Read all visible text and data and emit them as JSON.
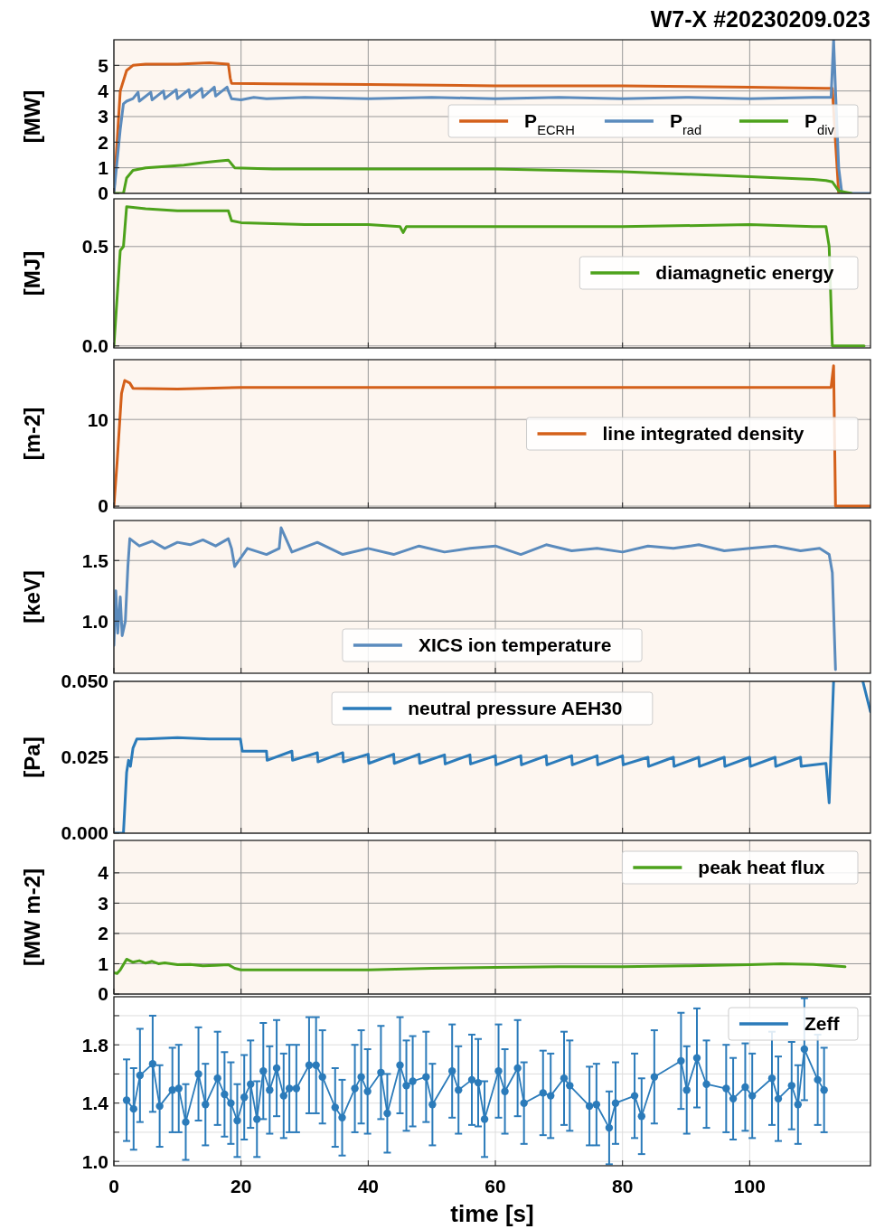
{
  "chart_data": [
    {
      "type": "line",
      "title": "W7-X #20230209.023",
      "ylabel": "[MW]",
      "xlim": [
        0,
        119
      ],
      "xticks": [
        0,
        20,
        40,
        60,
        80,
        100
      ],
      "ylim": [
        0,
        6
      ],
      "yticks": [
        0,
        1,
        2,
        3,
        4,
        5
      ],
      "grid": true,
      "legend": "right",
      "tick_labels": "y",
      "series": [
        {
          "name": "P$_{ECRH}$",
          "color": "#d4601a",
          "x": [
            0,
            0.5,
            1,
            2,
            3,
            5,
            10,
            15,
            18,
            18.3,
            18.5,
            25,
            40,
            60,
            80,
            100,
            112,
            113,
            113.5,
            114
          ],
          "values": [
            0,
            2,
            4,
            4.8,
            5.0,
            5.05,
            5.05,
            5.1,
            5.05,
            4.5,
            4.3,
            4.28,
            4.25,
            4.2,
            4.2,
            4.15,
            4.1,
            4.1,
            2,
            0
          ]
        },
        {
          "name": "P$_{rad}$",
          "color": "#5b8bbd",
          "x": [
            0,
            1,
            1.5,
            2,
            3,
            3.8,
            4,
            5.8,
            6,
            7.8,
            8,
            9.8,
            10,
            11.8,
            12,
            13.8,
            14,
            15.8,
            16,
            17.8,
            18,
            18.5,
            20,
            22,
            24,
            30,
            40,
            50,
            60,
            70,
            80,
            90,
            100,
            110,
            112.8,
            113.2,
            113.5,
            114,
            114.5,
            119
          ],
          "values": [
            0,
            2.5,
            3.5,
            3.6,
            3.7,
            3.95,
            3.6,
            3.95,
            3.65,
            4.0,
            3.7,
            4.05,
            3.7,
            4.05,
            3.75,
            4.1,
            3.75,
            4.15,
            3.8,
            4.15,
            4.0,
            3.7,
            3.65,
            3.75,
            3.7,
            3.75,
            3.7,
            3.75,
            3.7,
            3.75,
            3.7,
            3.75,
            3.7,
            3.75,
            3.75,
            6,
            4,
            1,
            0,
            0
          ]
        },
        {
          "name": "P$_{div}$",
          "color": "#4da21b",
          "x": [
            0,
            1.5,
            2,
            3,
            5,
            8,
            11,
            14,
            16,
            18,
            19,
            25,
            40,
            60,
            70,
            80,
            90,
            100,
            105,
            110,
            112,
            113,
            114,
            116
          ],
          "values": [
            0,
            0,
            0.6,
            0.9,
            1.0,
            1.05,
            1.1,
            1.2,
            1.25,
            1.3,
            1.0,
            0.95,
            0.95,
            0.95,
            0.9,
            0.85,
            0.75,
            0.65,
            0.6,
            0.55,
            0.5,
            0.45,
            0.1,
            0
          ]
        }
      ]
    },
    {
      "type": "line",
      "ylabel": "[MJ]",
      "xlim": [
        0,
        119
      ],
      "xticks": [
        0,
        20,
        40,
        60,
        80,
        100
      ],
      "ylim": [
        -0.01,
        0.74
      ],
      "yticks": [
        {
          "value": 0,
          "label": "0.0"
        },
        {
          "value": 0.5,
          "label": "0.5"
        }
      ],
      "grid": true,
      "legend": "right",
      "tick_labels": "y",
      "series": [
        {
          "name": "diamagnetic energy",
          "color": "#4da21b",
          "x": [
            0,
            1,
            1.5,
            2,
            5,
            10,
            18,
            18.5,
            20,
            30,
            40,
            45,
            45.5,
            46,
            60,
            80,
            100,
            110,
            112,
            112.5,
            113,
            118
          ],
          "values": [
            0,
            0.48,
            0.5,
            0.7,
            0.69,
            0.68,
            0.68,
            0.63,
            0.62,
            0.61,
            0.61,
            0.6,
            0.57,
            0.6,
            0.6,
            0.6,
            0.61,
            0.6,
            0.6,
            0.5,
            0,
            0
          ]
        }
      ]
    },
    {
      "type": "line",
      "ylabel": "[m-2]",
      "xlim": [
        0,
        119
      ],
      "xticks": [
        0,
        20,
        40,
        60,
        80,
        100
      ],
      "ylim": [
        -0.2,
        16.9
      ],
      "yticks": [
        0,
        10
      ],
      "grid": true,
      "legend": "right",
      "tick_labels": "y",
      "series": [
        {
          "name": "line integrated density",
          "color": "#d4601a",
          "x": [
            0,
            0.5,
            1.2,
            1.7,
            2.5,
            3,
            10,
            20,
            40,
            60,
            80,
            100,
            112.8,
            113.2,
            113.5,
            119
          ],
          "values": [
            0,
            5,
            13,
            14.5,
            14.2,
            13.6,
            13.5,
            13.7,
            13.7,
            13.7,
            13.7,
            13.7,
            13.7,
            16.2,
            0,
            0
          ]
        }
      ]
    },
    {
      "type": "line",
      "ylabel": "[keV]",
      "xlim": [
        0,
        119
      ],
      "xticks": [
        0,
        20,
        40,
        60,
        80,
        100
      ],
      "ylim": [
        0.57,
        1.83
      ],
      "yticks": [
        {
          "value": 1.0,
          "label": "1.0"
        },
        1.5
      ],
      "grid": true,
      "legend": "bottom",
      "tick_labels": "y",
      "series": [
        {
          "name": "XICS ion temperature",
          "color": "#5b8bbd",
          "x": [
            0,
            0.3,
            0.6,
            1,
            1.3,
            1.8,
            2.2,
            2.5,
            4,
            6,
            8,
            10,
            12,
            14,
            16,
            18,
            18.5,
            19,
            21,
            24,
            26,
            26.3,
            28,
            32,
            36,
            40,
            44,
            48,
            52,
            56,
            60,
            64,
            68,
            72,
            76,
            80,
            84,
            88,
            92,
            96,
            100,
            104,
            108,
            111,
            112.5,
            113,
            113.5
          ],
          "values": [
            0.8,
            1.25,
            0.9,
            1.2,
            0.88,
            1.0,
            1.45,
            1.68,
            1.62,
            1.66,
            1.6,
            1.65,
            1.63,
            1.67,
            1.62,
            1.68,
            1.6,
            1.45,
            1.6,
            1.55,
            1.6,
            1.77,
            1.57,
            1.65,
            1.55,
            1.6,
            1.55,
            1.62,
            1.57,
            1.6,
            1.62,
            1.55,
            1.63,
            1.58,
            1.6,
            1.57,
            1.62,
            1.6,
            1.63,
            1.58,
            1.6,
            1.62,
            1.58,
            1.6,
            1.55,
            1.4,
            0.6
          ]
        }
      ]
    },
    {
      "type": "line",
      "ylabel": "[Pa]",
      "xlim": [
        0,
        119
      ],
      "xticks": [
        0,
        20,
        40,
        60,
        80,
        100
      ],
      "ylim": [
        0,
        0.05
      ],
      "yticks": [
        {
          "value": 0,
          "label": "0.000"
        },
        {
          "value": 0.025,
          "label": "0.025"
        },
        {
          "value": 0.05,
          "label": "0.050"
        }
      ],
      "grid": true,
      "legend": "top",
      "tick_labels": "y",
      "series": [
        {
          "name": "neutral pressure AEH30",
          "color": "#2b7bba",
          "x": [
            0,
            1.5,
            2,
            2.3,
            2.6,
            3,
            3.6,
            5,
            10,
            15,
            19.9,
            20.2,
            24,
            24.1,
            28,
            28.1,
            32,
            32.1,
            36,
            36.1,
            40,
            40.1,
            44,
            44.1,
            48,
            48.1,
            52,
            52.1,
            56,
            56.1,
            60,
            60.1,
            64,
            64.1,
            68,
            68.1,
            72,
            72.1,
            76,
            76.1,
            80,
            80.1,
            84,
            84.1,
            88,
            88.1,
            92,
            92.1,
            96,
            96.1,
            100,
            100.1,
            104,
            104.1,
            108,
            108.1,
            112,
            112.5,
            113.2,
            115,
            117.8,
            119
          ],
          "values": [
            0,
            0,
            0.02,
            0.024,
            0.022,
            0.028,
            0.031,
            0.031,
            0.0315,
            0.031,
            0.031,
            0.027,
            0.027,
            0.024,
            0.027,
            0.024,
            0.0265,
            0.0235,
            0.0265,
            0.0235,
            0.026,
            0.023,
            0.026,
            0.023,
            0.026,
            0.023,
            0.0258,
            0.0228,
            0.0258,
            0.0228,
            0.0255,
            0.0225,
            0.0255,
            0.0225,
            0.0255,
            0.0225,
            0.0255,
            0.0225,
            0.0255,
            0.0225,
            0.0255,
            0.0225,
            0.025,
            0.022,
            0.025,
            0.022,
            0.025,
            0.022,
            0.025,
            0.022,
            0.025,
            0.022,
            0.025,
            0.022,
            0.025,
            0.022,
            0.023,
            0.01,
            0.05,
            null,
            0.05,
            0.04
          ]
        }
      ]
    },
    {
      "type": "line",
      "ylabel": "[MW m-2]",
      "xlim": [
        0,
        119
      ],
      "xticks": [
        0,
        20,
        40,
        60,
        80,
        100
      ],
      "ylim": [
        0,
        5.07
      ],
      "yticks": [
        0,
        1,
        2,
        3,
        4
      ],
      "grid": true,
      "legend": "top right",
      "tick_labels": "y",
      "series": [
        {
          "name": "peak heat flux",
          "color": "#4da21b",
          "x": [
            0,
            0.5,
            1,
            2,
            3,
            4,
            5,
            6,
            7,
            8,
            10,
            12,
            14,
            16,
            18,
            19,
            20,
            30,
            40,
            50,
            60,
            70,
            80,
            90,
            100,
            105,
            110,
            115
          ],
          "values": [
            0.7,
            0.68,
            0.8,
            1.15,
            1.05,
            1.1,
            1.02,
            1.08,
            1.0,
            1.03,
            0.97,
            0.98,
            0.93,
            0.95,
            0.97,
            0.85,
            0.8,
            0.8,
            0.8,
            0.85,
            0.88,
            0.9,
            0.9,
            0.93,
            0.97,
            1.0,
            0.98,
            0.9
          ]
        }
      ]
    },
    {
      "type": "line",
      "xlabel": "time [s]",
      "xlim": [
        0,
        119
      ],
      "xticks": [
        0,
        20,
        40,
        60,
        80,
        100
      ],
      "ylim": [
        0.97,
        2.13
      ],
      "yticks": [
        {
          "value": 1.0,
          "label": "1.0"
        },
        {
          "value": 1.2,
          "label": null
        },
        {
          "value": 1.4,
          "label": "1.4"
        },
        {
          "value": 1.6,
          "label": null
        },
        {
          "value": 1.8,
          "label": "1.8"
        },
        {
          "value": 2.0,
          "label": null
        }
      ],
      "grid": true,
      "legend": "top right",
      "marker": "circle",
      "series": [
        {
          "name": "Zeff",
          "color": "#2b7bba",
          "x": [
            2.0,
            3.1,
            4.1,
            6.1,
            7.2,
            9.2,
            10.2,
            11.3,
            13.3,
            14.4,
            16.3,
            17.4,
            18.4,
            19.4,
            20.5,
            21.5,
            22.5,
            23.5,
            24.5,
            25.6,
            26.7,
            27.6,
            28.7,
            30.7,
            31.8,
            32.8,
            34.8,
            35.9,
            37.9,
            38.9,
            39.9,
            42.0,
            43.0,
            45.0,
            46.0,
            47.0,
            49.1,
            50.1,
            53.2,
            54.2,
            56.3,
            57.3,
            58.3,
            60.5,
            61.5,
            63.5,
            64.5,
            67.5,
            68.7,
            70.8,
            71.7,
            74.8,
            75.9,
            77.9,
            78.9,
            81.9,
            83.0,
            85.0,
            89.2,
            90.1,
            91.7,
            93.2,
            96.3,
            97.4,
            99.3,
            100.4,
            103.5,
            104.5,
            106.6,
            107.6,
            108.6,
            110.7,
            111.7
          ],
          "values": [
            1.42,
            1.36,
            1.59,
            1.67,
            1.38,
            1.49,
            1.5,
            1.27,
            1.6,
            1.39,
            1.57,
            1.46,
            1.4,
            1.28,
            1.44,
            1.53,
            1.29,
            1.62,
            1.49,
            1.64,
            1.45,
            1.5,
            1.5,
            1.66,
            1.66,
            1.58,
            1.37,
            1.3,
            1.5,
            1.58,
            1.48,
            1.61,
            1.33,
            1.66,
            1.52,
            1.55,
            1.58,
            1.39,
            1.62,
            1.49,
            1.56,
            1.54,
            1.29,
            1.62,
            1.48,
            1.64,
            1.4,
            1.47,
            1.45,
            1.57,
            1.52,
            1.38,
            1.39,
            1.23,
            1.4,
            1.45,
            1.31,
            1.58,
            1.69,
            1.49,
            1.71,
            1.53,
            1.5,
            1.43,
            1.51,
            1.45,
            1.57,
            1.43,
            1.52,
            1.39,
            1.77,
            1.56,
            1.49
          ],
          "errors": [
            0.28,
            0.28,
            0.32,
            0.33,
            0.28,
            0.29,
            0.3,
            0.26,
            0.32,
            0.28,
            0.32,
            0.29,
            0.28,
            0.25,
            0.29,
            0.3,
            0.26,
            0.33,
            0.3,
            0.33,
            0.29,
            0.3,
            0.3,
            0.33,
            0.33,
            0.32,
            0.27,
            0.26,
            0.3,
            0.32,
            0.29,
            0.32,
            0.27,
            0.33,
            0.31,
            0.31,
            0.31,
            0.28,
            0.32,
            0.3,
            0.31,
            0.3,
            0.26,
            0.32,
            0.29,
            0.33,
            0.28,
            0.29,
            0.29,
            0.32,
            0.31,
            0.27,
            0.28,
            0.25,
            0.28,
            0.29,
            0.26,
            0.32,
            0.33,
            0.3,
            0.34,
            0.3,
            0.3,
            0.28,
            0.3,
            0.29,
            0.32,
            0.29,
            0.3,
            0.27,
            0.35,
            0.31,
            0.29
          ]
        }
      ]
    }
  ]
}
